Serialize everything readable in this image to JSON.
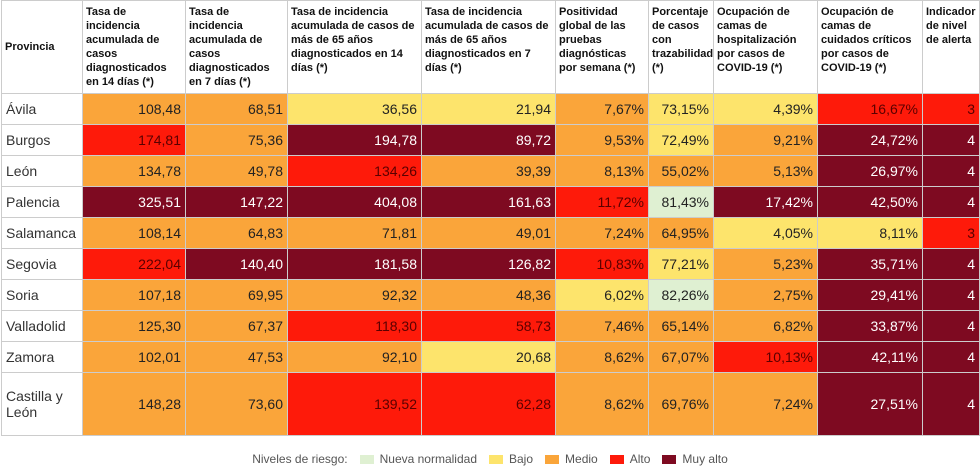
{
  "table": {
    "headers": [
      "Provincia",
      "Tasa de incidencia acumulada de casos diagnosticados en 14 días (*)",
      "Tasa de incidencia acumulada de casos diagnosticados en 7 días (*)",
      "Tasa de incidencia acumulada de casos de más de 65 años diagnosticados en 14 días (*)",
      "Tasa de incidencia acumulada de casos de más de 65 años diagnosticados en 7 días (*)",
      "Positividad global de las pruebas diagnósticas por semana (*)",
      "Porcentaje de casos con trazabilidad (*)",
      "Ocupación de camas de hospitalización por casos de COVID-19 (*)",
      "Ocupación de camas de cuidados críticos por casos de COVID-19 (*)",
      "Indicador de nivel de alerta"
    ],
    "rows": [
      [
        "Ávila",
        "108,48",
        "68,51",
        "36,56",
        "21,94",
        "7,67%",
        "73,15%",
        "4,39%",
        "16,67%",
        "3"
      ],
      [
        "Burgos",
        "174,81",
        "75,36",
        "194,78",
        "89,72",
        "9,53%",
        "72,49%",
        "9,21%",
        "24,72%",
        "4"
      ],
      [
        "León",
        "134,78",
        "49,78",
        "134,26",
        "39,39",
        "8,13%",
        "55,02%",
        "5,13%",
        "26,97%",
        "4"
      ],
      [
        "Palencia",
        "325,51",
        "147,22",
        "404,08",
        "161,63",
        "11,72%",
        "81,43%",
        "17,42%",
        "42,50%",
        "4"
      ],
      [
        "Salamanca",
        "108,14",
        "64,83",
        "71,81",
        "49,01",
        "7,24%",
        "64,95%",
        "4,05%",
        "8,11%",
        "3"
      ],
      [
        "Segovia",
        "222,04",
        "140,40",
        "181,58",
        "126,82",
        "10,83%",
        "77,21%",
        "5,23%",
        "35,71%",
        "4"
      ],
      [
        "Soria",
        "107,18",
        "69,95",
        "92,32",
        "48,36",
        "6,02%",
        "82,26%",
        "2,75%",
        "29,41%",
        "4"
      ],
      [
        "Valladolid",
        "125,30",
        "67,37",
        "118,30",
        "58,73",
        "7,46%",
        "65,14%",
        "6,82%",
        "33,87%",
        "4"
      ],
      [
        "Zamora",
        "102,01",
        "47,53",
        "92,10",
        "20,68",
        "8,62%",
        "67,07%",
        "10,13%",
        "42,11%",
        "4"
      ],
      [
        "Castilla y León",
        "148,28",
        "73,60",
        "139,52",
        "62,28",
        "8,62%",
        "69,76%",
        "7,24%",
        "27,51%",
        "4"
      ]
    ],
    "colors": [
      [
        "#faa53a",
        "#faa53a",
        "#fde46c",
        "#fde46c",
        "#faa53a",
        "#fde46c",
        "#fde46c",
        "#fe1a0a",
        "#fe1a0a"
      ],
      [
        "#fe1a0a",
        "#faa53a",
        "#7e0a21",
        "#7e0a21",
        "#faa53a",
        "#fde46c",
        "#faa53a",
        "#7e0a21",
        "#7e0a21"
      ],
      [
        "#faa53a",
        "#faa53a",
        "#fe1a0a",
        "#faa53a",
        "#faa53a",
        "#faa53a",
        "#faa53a",
        "#7e0a21",
        "#7e0a21"
      ],
      [
        "#7e0a21",
        "#7e0a21",
        "#7e0a21",
        "#7e0a21",
        "#fe1a0a",
        "#dff0d2",
        "#7e0a21",
        "#7e0a21",
        "#7e0a21"
      ],
      [
        "#faa53a",
        "#faa53a",
        "#faa53a",
        "#faa53a",
        "#faa53a",
        "#faa53a",
        "#fde46c",
        "#fde46c",
        "#fe1a0a"
      ],
      [
        "#fe1a0a",
        "#7e0a21",
        "#7e0a21",
        "#7e0a21",
        "#fe1a0a",
        "#fde46c",
        "#faa53a",
        "#7e0a21",
        "#7e0a21"
      ],
      [
        "#faa53a",
        "#faa53a",
        "#faa53a",
        "#faa53a",
        "#fde46c",
        "#dff0d2",
        "#faa53a",
        "#7e0a21",
        "#7e0a21"
      ],
      [
        "#faa53a",
        "#faa53a",
        "#fe1a0a",
        "#fe1a0a",
        "#faa53a",
        "#faa53a",
        "#faa53a",
        "#7e0a21",
        "#7e0a21"
      ],
      [
        "#faa53a",
        "#faa53a",
        "#faa53a",
        "#fde46c",
        "#faa53a",
        "#faa53a",
        "#fe1a0a",
        "#7e0a21",
        "#7e0a21"
      ],
      [
        "#faa53a",
        "#faa53a",
        "#fe1a0a",
        "#fe1a0a",
        "#faa53a",
        "#faa53a",
        "#faa53a",
        "#7e0a21",
        "#7e0a21"
      ]
    ]
  },
  "legend": {
    "title": "Niveles de riesgo:",
    "items": [
      {
        "label": "Nueva normalidad",
        "color": "#dff0d2"
      },
      {
        "label": "Bajo",
        "color": "#fde46c"
      },
      {
        "label": "Medio",
        "color": "#faa53a"
      },
      {
        "label": "Alto",
        "color": "#fe1a0a"
      },
      {
        "label": "Muy alto",
        "color": "#7e0a21"
      }
    ]
  }
}
